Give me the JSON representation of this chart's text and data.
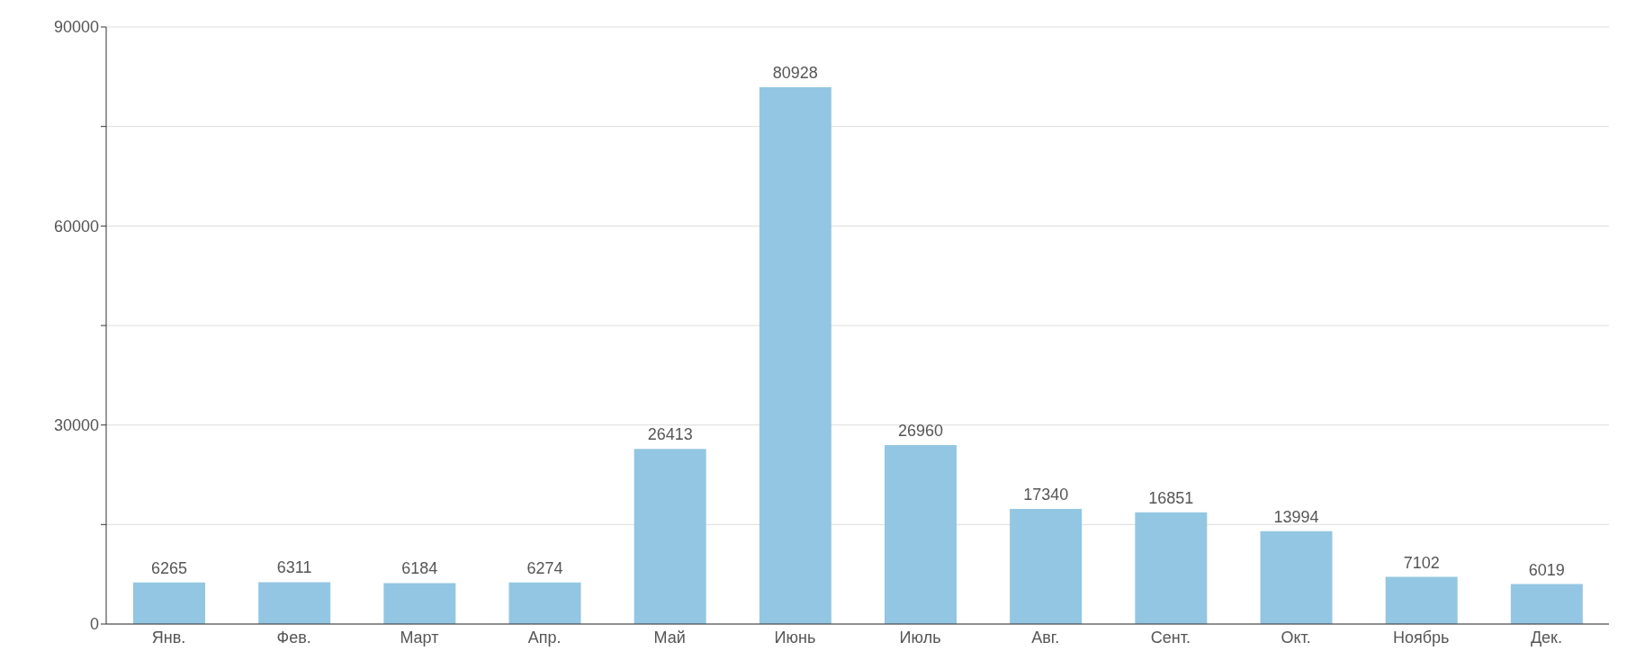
{
  "chart_data": {
    "type": "bar",
    "categories": [
      "Янв.",
      "Фев.",
      "Март",
      "Апр.",
      "Май",
      "Июнь",
      "Июль",
      "Авг.",
      "Сент.",
      "Окт.",
      "Ноябрь",
      "Дек."
    ],
    "values": [
      6265,
      6311,
      6184,
      6274,
      26413,
      80928,
      26960,
      17340,
      16851,
      13994,
      7102,
      6019
    ],
    "color": "#93c6e2",
    "data_labels": true,
    "grid": "y",
    "ylim": [
      0,
      90000
    ],
    "yticks": [
      0,
      {
        "value": 15000,
        "label": null
      },
      30000,
      {
        "value": 45000,
        "label": null
      },
      60000,
      {
        "value": 75000,
        "label": null
      },
      90000
    ]
  }
}
